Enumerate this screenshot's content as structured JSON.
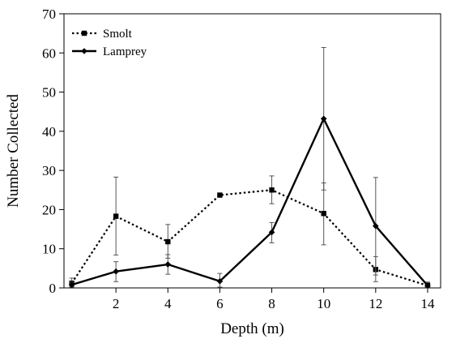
{
  "chart_data": {
    "type": "line",
    "title": "",
    "xlabel": "Depth (m)",
    "ylabel": "Number Collected",
    "xlim": [
      0,
      14.5
    ],
    "ylim": [
      0,
      70
    ],
    "xticks": [
      2,
      4,
      6,
      8,
      10,
      12,
      14
    ],
    "yticks": [
      0,
      10,
      20,
      30,
      40,
      50,
      60,
      70
    ],
    "grid": false,
    "legend": "top-left",
    "series": [
      {
        "name": "Smolt",
        "style": "dotted",
        "marker": "square",
        "color": "#000000",
        "x": [
          0.3,
          2,
          4,
          6,
          8,
          10,
          12,
          14
        ],
        "y": [
          1.2,
          18.3,
          11.8,
          23.7,
          25.0,
          19.0,
          4.7,
          0.6
        ],
        "err_high": [
          2.5,
          28.3,
          16.2,
          23.7,
          28.6,
          26.8,
          8.0,
          1.3
        ],
        "err_low": [
          0.4,
          8.4,
          7.6,
          23.7,
          21.5,
          11.0,
          1.6,
          0.1
        ]
      },
      {
        "name": "Lamprey",
        "style": "solid",
        "marker": "diamond",
        "color": "#000000",
        "x": [
          0.3,
          2,
          4,
          6,
          8,
          10,
          12,
          14
        ],
        "y": [
          0.8,
          4.2,
          6.0,
          1.7,
          14.2,
          43.2,
          15.8,
          0.6
        ],
        "err_high": [
          1.5,
          6.7,
          8.5,
          3.7,
          16.7,
          61.4,
          28.2,
          1.5
        ],
        "err_low": [
          0.2,
          1.6,
          3.5,
          0.2,
          11.5,
          25.0,
          3.3,
          0.1
        ]
      }
    ]
  }
}
